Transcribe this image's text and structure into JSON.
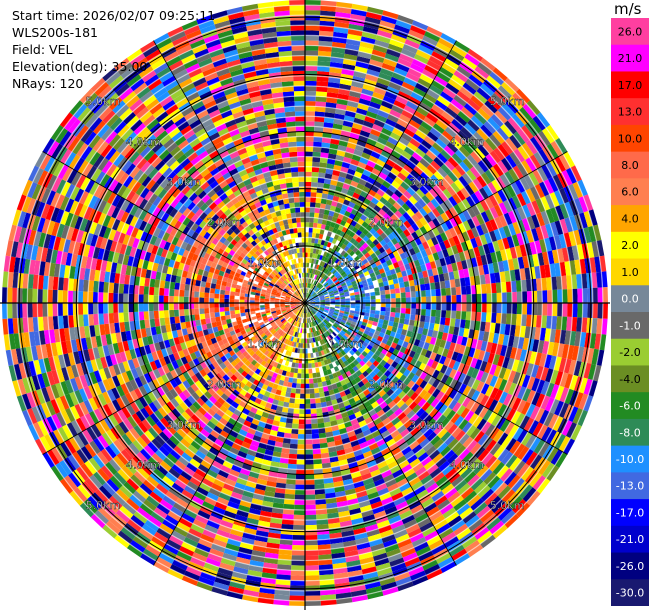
{
  "info": {
    "start_time": "Start time: 2026/02/07 09:25:11",
    "instrument": "WLS200s-181",
    "field": "Field: VEL",
    "elevation": "Elevation(deg): 35.00",
    "nrays": "NRays: 120"
  },
  "colorbar": {
    "unit": "m/s",
    "bins": [
      {
        "label": "26.0",
        "color": "#ff3fa0"
      },
      {
        "label": "21.0",
        "color": "#ff00ff"
      },
      {
        "label": "17.0",
        "color": "#ff0000"
      },
      {
        "label": "13.0",
        "color": "#ff3030"
      },
      {
        "label": "10.0",
        "color": "#ff4500"
      },
      {
        "label": "8.0",
        "color": "#ff6a4a"
      },
      {
        "label": "6.0",
        "color": "#ff7f50"
      },
      {
        "label": "4.0",
        "color": "#ffa500"
      },
      {
        "label": "2.0",
        "color": "#ffff00"
      },
      {
        "label": "1.0",
        "color": "#ffd700"
      },
      {
        "label": "0.0",
        "color": "#778899"
      },
      {
        "label": "-1.0",
        "color": "#696969"
      },
      {
        "label": "-2.0",
        "color": "#9acd32"
      },
      {
        "label": "-4.0",
        "color": "#6b8e23"
      },
      {
        "label": "-6.0",
        "color": "#228b22"
      },
      {
        "label": "-8.0",
        "color": "#2e8b57"
      },
      {
        "label": "-10.0",
        "color": "#1e90ff"
      },
      {
        "label": "-13.0",
        "color": "#4169e1"
      },
      {
        "label": "-17.0",
        "color": "#0000ff"
      },
      {
        "label": "-21.0",
        "color": "#0000cd"
      },
      {
        "label": "-26.0",
        "color": "#000080"
      },
      {
        "label": "-30.0",
        "color": "#191970"
      }
    ]
  },
  "range_labels": [
    "1.0km",
    "2.0km",
    "3.0km",
    "4.0km",
    "5.0km"
  ],
  "max_range_km": 5.3,
  "nrays": 120,
  "ngates": 60
}
